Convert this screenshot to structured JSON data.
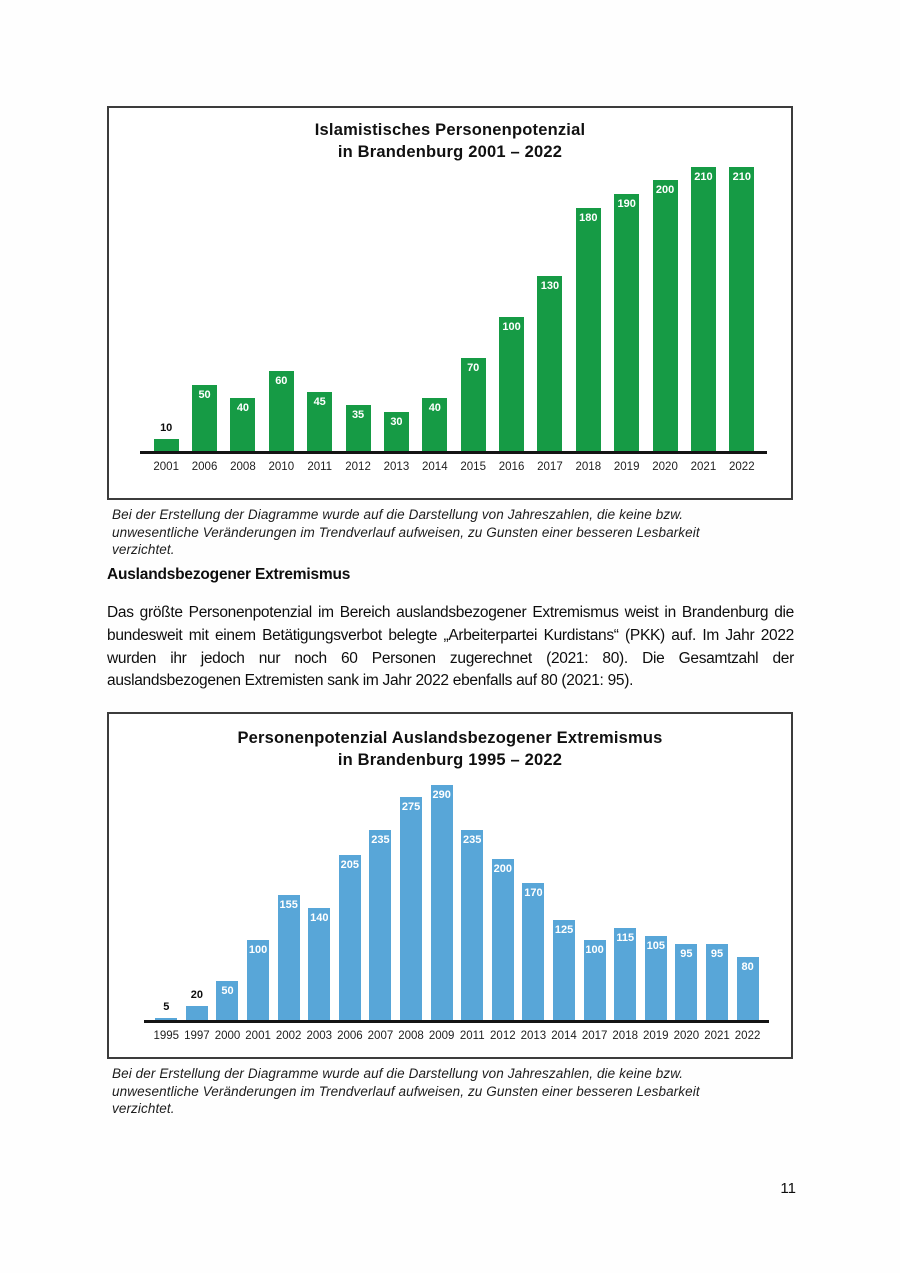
{
  "page": {
    "number": "11"
  },
  "section": {
    "heading": "Auslandsbezogener Extremismus",
    "paragraph": "Das größte Personenpotenzial im Bereich auslandsbezogener Extremismus weist in Brandenburg die bundesweit mit einem Betätigungsverbot belegte „Arbeiterpartei Kurdistans“ (PKK) auf. Im Jahr 2022 wurden ihr jedoch nur noch 60 Personen zugerechnet (2021: 80). Die Gesamtzahl der auslandsbezogenen Extremisten sank im Jahr 2022 ebenfalls auf 80 (2021: 95)."
  },
  "footnote": "Bei der Erstellung der Diagramme wurde auf die Darstellung von Jahreszahlen, die keine bzw. unwesentliche Veränderungen im Trendverlauf aufweisen, zu Gunsten einer besseren Lesbarkeit verzichtet.",
  "chart_data": [
    {
      "type": "bar",
      "title_line1": "Islamistisches Personenpotenzial",
      "title_line2": "in Brandenburg 2001 – 2022",
      "categories": [
        "2001",
        "2006",
        "2008",
        "2010",
        "2011",
        "2012",
        "2013",
        "2014",
        "2015",
        "2016",
        "2017",
        "2018",
        "2019",
        "2020",
        "2021",
        "2022"
      ],
      "values": [
        10,
        50,
        40,
        60,
        45,
        35,
        30,
        40,
        70,
        100,
        130,
        180,
        190,
        200,
        210,
        210
      ],
      "bar_color": "#169b45",
      "value_label_color_inside": "#ffffff",
      "value_label_color_outside": "#0d0d0d",
      "xlabel": "",
      "ylabel": "",
      "ylim": [
        0,
        220
      ],
      "grid": false,
      "legend": "none"
    },
    {
      "type": "bar",
      "title_line1": "Personenpotenzial Auslandsbezogener Extremismus",
      "title_line2": "in Brandenburg 1995 – 2022",
      "categories": [
        "1995",
        "1997",
        "2000",
        "2001",
        "2002",
        "2003",
        "2006",
        "2007",
        "2008",
        "2009",
        "2011",
        "2012",
        "2013",
        "2014",
        "2017",
        "2018",
        "2019",
        "2020",
        "2021",
        "2022"
      ],
      "values": [
        5,
        20,
        50,
        100,
        155,
        140,
        205,
        235,
        275,
        290,
        235,
        200,
        170,
        125,
        100,
        115,
        105,
        95,
        95,
        80
      ],
      "bar_color": "#58a6d8",
      "value_label_color_inside": "#ffffff",
      "value_label_color_outside": "#0d0d0d",
      "xlabel": "",
      "ylabel": "",
      "ylim": [
        0,
        300
      ],
      "grid": false,
      "legend": "none"
    }
  ]
}
